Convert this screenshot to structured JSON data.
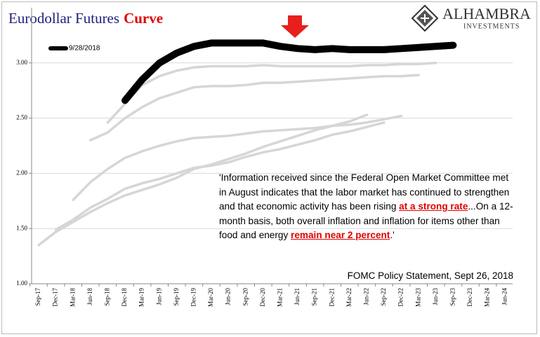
{
  "chart_data": {
    "type": "line",
    "title": "Eurodollar Futures",
    "title_highlight": "Curve",
    "logo": {
      "name": "ALHAMBRA",
      "subtitle": "INVESTMENTS"
    },
    "categories": [
      "Sep-17",
      "Dec-17",
      "Mar-18",
      "Jun-18",
      "Sep-18",
      "Dec-18",
      "Mar-19",
      "Jun-19",
      "Sep-19",
      "Dec-19",
      "Mar-20",
      "Jun-20",
      "Sep-20",
      "Dec-20",
      "Mar-21",
      "Jun-21",
      "Sep-21",
      "Dec-21",
      "Mar-22",
      "Jun-22",
      "Sep-22",
      "Dec-22",
      "Mar-23",
      "Jun-23",
      "Sep-23",
      "Dec-23",
      "Mar-24",
      "Jun-24"
    ],
    "ylim": [
      1,
      3.5
    ],
    "yticks": [
      {
        "value": 1,
        "label": "1.00"
      },
      {
        "value": 1.5,
        "label": "1.50"
      },
      {
        "value": 2,
        "label": "2.00"
      },
      {
        "value": 2.5,
        "label": "2.50"
      },
      {
        "value": 3,
        "label": "3.00"
      }
    ],
    "grid": true,
    "series": [
      {
        "color": "#d6d6d6",
        "values": [
          1.35,
          1.47,
          1.56,
          1.65,
          1.73,
          1.8,
          1.85,
          1.9,
          1.96,
          2.04,
          2.08,
          2.13,
          2.18,
          2.24,
          2.29,
          2.34,
          2.39,
          2.43,
          2.47,
          2.53,
          null,
          null,
          null,
          null,
          null,
          null,
          null,
          null
        ]
      },
      {
        "color": "#d6d6d6",
        "values": [
          null,
          1.49,
          1.58,
          1.69,
          1.77,
          1.86,
          1.91,
          1.95,
          2.0,
          2.05,
          2.07,
          2.1,
          2.15,
          2.19,
          2.22,
          2.26,
          2.3,
          2.35,
          2.38,
          2.42,
          2.46,
          null,
          null,
          null,
          null,
          null,
          null,
          null
        ]
      },
      {
        "color": "#d6d6d6",
        "values": [
          null,
          null,
          1.76,
          1.92,
          2.04,
          2.14,
          2.2,
          2.25,
          2.29,
          2.32,
          2.33,
          2.34,
          2.36,
          2.38,
          2.39,
          2.4,
          2.41,
          2.43,
          2.44,
          2.46,
          2.49,
          2.52,
          null,
          null,
          null,
          null,
          null,
          null
        ]
      },
      {
        "color": "#d6d6d6",
        "values": [
          null,
          null,
          null,
          2.3,
          2.37,
          2.5,
          2.6,
          2.68,
          2.73,
          2.78,
          2.79,
          2.79,
          2.8,
          2.82,
          2.82,
          2.83,
          2.84,
          2.85,
          2.86,
          2.87,
          2.88,
          2.88,
          2.89,
          null,
          null,
          null,
          null,
          null
        ]
      },
      {
        "color": "#d6d6d6",
        "values": [
          null,
          null,
          null,
          null,
          2.46,
          2.63,
          2.8,
          2.88,
          2.93,
          2.96,
          2.97,
          2.97,
          2.97,
          2.98,
          2.97,
          2.97,
          2.97,
          2.97,
          2.97,
          2.98,
          2.98,
          2.99,
          2.99,
          3.0,
          null,
          null,
          null,
          null
        ]
      },
      {
        "name": "9/28/2018",
        "color": "#000000",
        "values": [
          null,
          null,
          null,
          null,
          null,
          2.66,
          2.85,
          3.0,
          3.09,
          3.15,
          3.18,
          3.18,
          3.18,
          3.18,
          3.15,
          3.13,
          3.12,
          3.13,
          3.12,
          3.12,
          3.12,
          3.13,
          3.14,
          3.15,
          3.16,
          null,
          null,
          null
        ]
      }
    ],
    "annotation": [
      "'Information received since the Federal Open Market Committee met in August indicates that the labor market has continued to strengthen and that economic activity has been rising ",
      "at a strong rate",
      "...On a 12-month basis, both overall inflation and inflation for items other than food and energy ",
      "remain near 2 percent",
      ".'"
    ],
    "source": "FOMC Policy Statement,  Sept 26, 2018"
  }
}
